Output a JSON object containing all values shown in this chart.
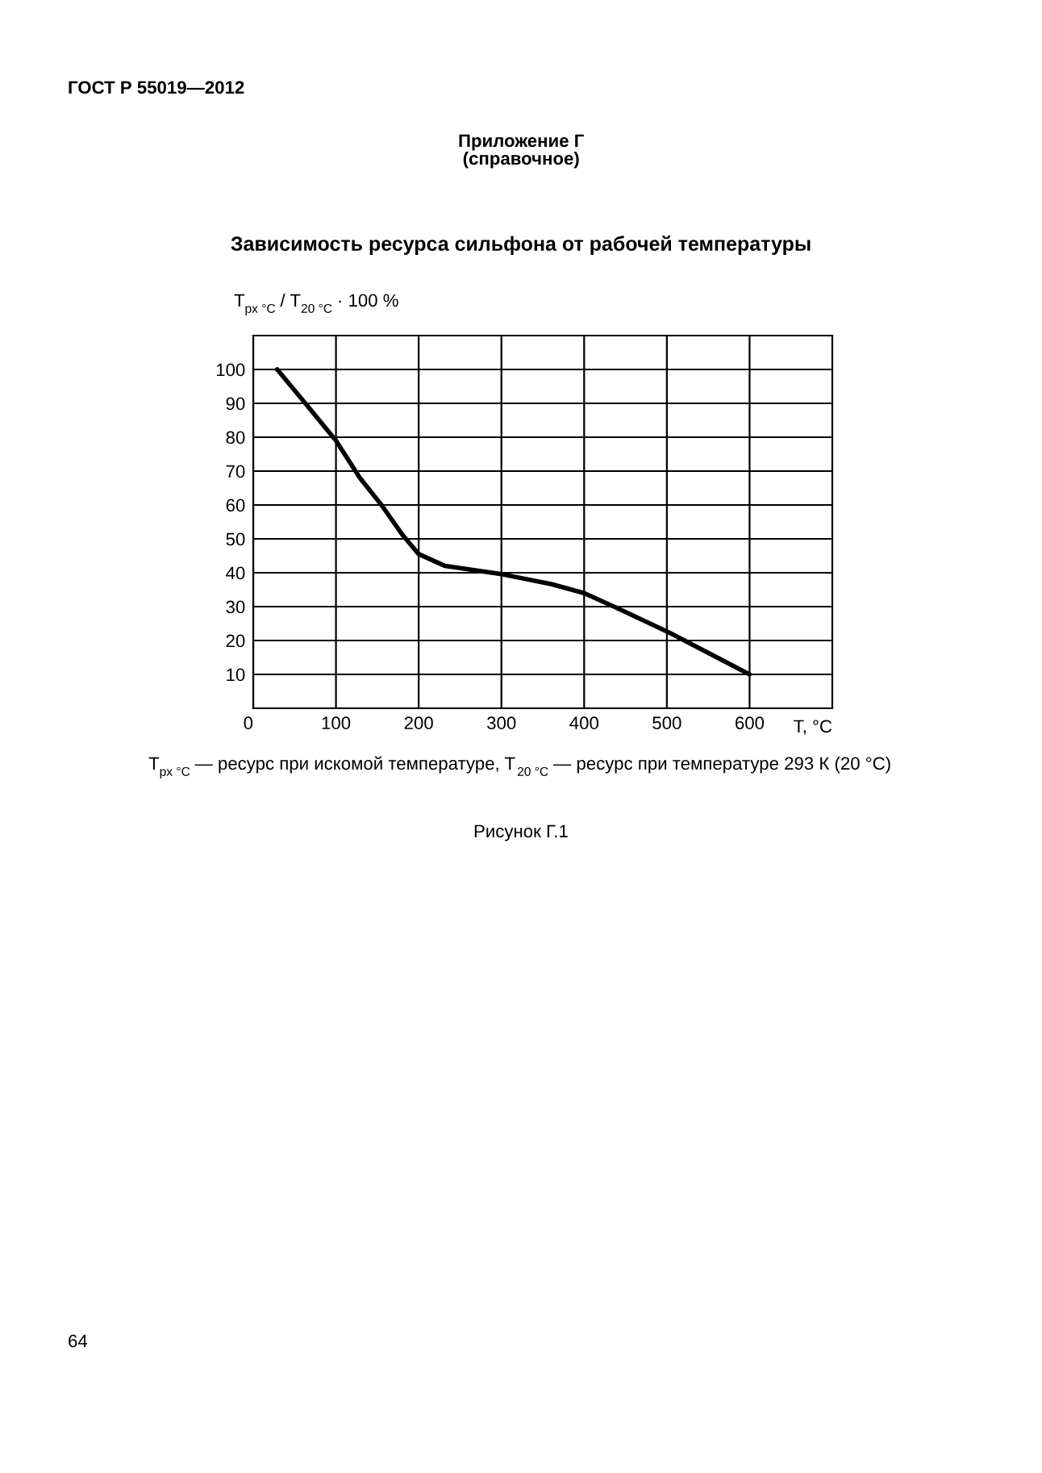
{
  "chart_data": {
    "type": "line",
    "title": "Зависимость ресурса сильфона от рабочей температуры",
    "xlabel": "T, °C",
    "ylabel": "T$_{px °C}$ / T$_{20 °C}$ · 100 %",
    "annotations": [
      "ГОСТ Р 55019—2012",
      "Приложение Г",
      "(справочное)",
      "T$_{px °C}$ — ресурс при искомой температуре, T$_{20 °C}$ — ресурс при температуре 293 К (20 °C)",
      "Рисунок Г.1",
      "64"
    ],
    "x": [
      29,
      63,
      100,
      129,
      155,
      181,
      200,
      232,
      302,
      361,
      400,
      445,
      503,
      600
    ],
    "series": [
      {
        "color": "#000000",
        "values": [
          100,
          90,
          79,
          68,
          60,
          51,
          45.5,
          42,
          39.5,
          36.6,
          34,
          29,
          22.3,
          10
        ]
      }
    ],
    "xlim": [
      0,
      700
    ],
    "xticks": [
      0,
      100,
      200,
      300,
      400,
      500,
      600
    ],
    "ylim": [
      0,
      110
    ],
    "yticks": [
      10,
      20,
      30,
      40,
      50,
      60,
      70,
      80,
      90,
      100
    ],
    "grid": true,
    "marker": "none",
    "line_style": "solid"
  }
}
